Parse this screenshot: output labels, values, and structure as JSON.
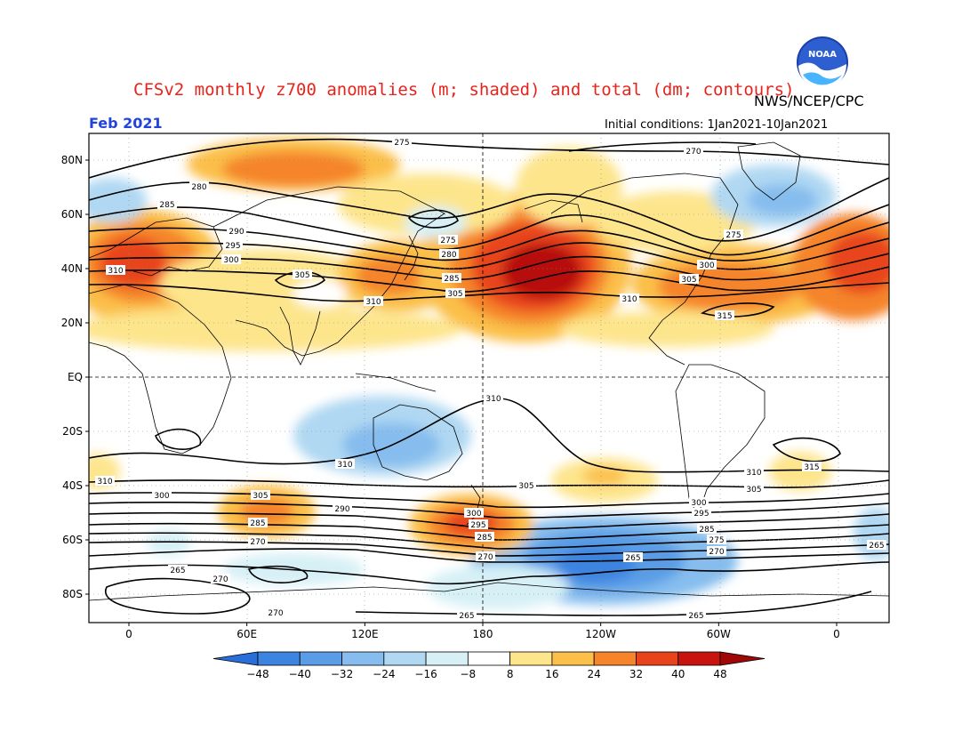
{
  "header": {
    "title": "CFSv2 monthly z700 anomalies (m; shaded) and total (dm; contours)",
    "agency": "NWS/NCEP/CPC",
    "month": "Feb 2021",
    "initial_conditions": "Initial conditions: 1Jan2021-10Jan2021",
    "logo_text": "NOAA"
  },
  "map": {
    "lat_labels": [
      "80N",
      "60N",
      "40N",
      "20N",
      "EQ",
      "20S",
      "40S",
      "60S",
      "80S"
    ],
    "lat_values": [
      80,
      60,
      40,
      20,
      0,
      -20,
      -40,
      -60,
      -80
    ],
    "lon_labels": [
      "0",
      "60E",
      "120E",
      "180",
      "120W",
      "60W",
      "0"
    ],
    "lon_values": [
      0,
      60,
      120,
      180,
      240,
      300,
      360
    ]
  },
  "colorbar": {
    "labels": [
      "-48",
      "-40",
      "-32",
      "-24",
      "-16",
      "-8",
      "8",
      "16",
      "24",
      "32",
      "40",
      "48"
    ],
    "colors": [
      "#2a6fd9",
      "#3d84e0",
      "#5a9de6",
      "#86bdee",
      "#b0d8f2",
      "#d6f0f6",
      "#ffffff",
      "#fde58c",
      "#fbbf4a",
      "#f5842a",
      "#e8441c",
      "#c8140e",
      "#a00808"
    ]
  },
  "anomaly_colors": {
    "neg_strong": "#3d84e0",
    "neg_mid": "#86bdee",
    "neg_weak": "#cdeaf5",
    "pos_weak": "#fde58c",
    "pos_mid": "#fbbf4a",
    "pos_strong": "#f5842a",
    "pos_vstrong": "#e8441c",
    "pos_max": "#b8100c"
  },
  "contour_labels": [
    "275",
    "270",
    "280",
    "285",
    "290",
    "295",
    "300",
    "305",
    "310",
    "315",
    "265"
  ]
}
